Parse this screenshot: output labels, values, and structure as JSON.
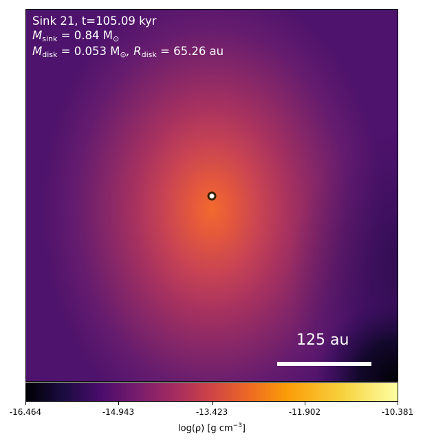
{
  "info": {
    "line1": "Sink 21, t=105.09 kyr",
    "msink_symbol": "M",
    "msink_sub": "sink",
    "msink_value": " = 0.84 M",
    "msink_sun_sub": "⊙",
    "mdisk_symbol": "M",
    "mdisk_sub": "disk",
    "mdisk_value": " = 0.053 M",
    "mdisk_sun_sub": "⊙",
    "rdisk_symbol": ", R",
    "rdisk_sub": "disk",
    "rdisk_value": " = 65.26 au"
  },
  "scalebar": {
    "label": "125 au"
  },
  "colorbar": {
    "ticks": [
      "-16.464",
      "-14.943",
      "-13.423",
      "-11.902",
      "-10.381"
    ],
    "label_main": "log(ρ) [g cm",
    "label_exp": "−3",
    "label_end": "]",
    "colormap": "inferno"
  },
  "colors": {
    "text": "#ffffff",
    "sink_ring": "#3a1e00"
  }
}
